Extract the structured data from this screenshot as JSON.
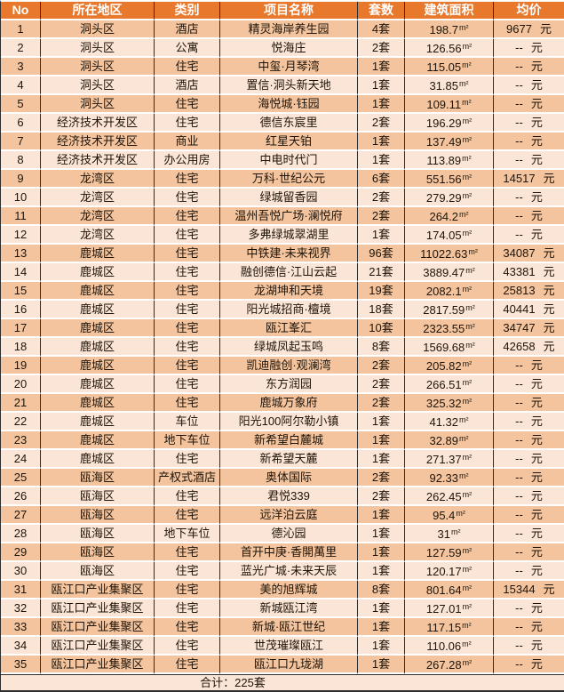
{
  "colors": {
    "header_bg": "#E8782B",
    "header_text": "#FFFFFF",
    "row_odd_bg": "#F3C49E",
    "row_even_bg": "#FBE5D6",
    "grid_dark": "#2E2E2E",
    "text": "#1F1409"
  },
  "table": {
    "columns": [
      {
        "key": "no",
        "label": "No"
      },
      {
        "key": "region",
        "label": "所在地区"
      },
      {
        "key": "category",
        "label": "类别"
      },
      {
        "key": "project",
        "label": "项目名称"
      },
      {
        "key": "units",
        "label": "套数"
      },
      {
        "key": "area",
        "label": "建筑面积"
      },
      {
        "key": "price",
        "label": "均价"
      }
    ],
    "area_unit": "m²",
    "price_unit": "元",
    "footer_label": "合计：225套",
    "rows": [
      {
        "no": "1",
        "region": "洞头区",
        "category": "酒店",
        "project": "精灵海岸养生园",
        "units": "4套",
        "area": "198.7",
        "price": "9677"
      },
      {
        "no": "2",
        "region": "洞头区",
        "category": "公寓",
        "project": "悦海庄",
        "units": "2套",
        "area": "126.56",
        "price": "--"
      },
      {
        "no": "3",
        "region": "洞头区",
        "category": "住宅",
        "project": "中玺·月琴湾",
        "units": "1套",
        "area": "115.05",
        "price": "--"
      },
      {
        "no": "4",
        "region": "洞头区",
        "category": "酒店",
        "project": "置信·洞头新天地",
        "units": "1套",
        "area": "31.85",
        "price": "--"
      },
      {
        "no": "5",
        "region": "洞头区",
        "category": "住宅",
        "project": "海悦城·钰园",
        "units": "1套",
        "area": "109.11",
        "price": "--"
      },
      {
        "no": "6",
        "region": "经济技术开发区",
        "category": "住宅",
        "project": "德信东宸里",
        "units": "2套",
        "area": "196.29",
        "price": "--"
      },
      {
        "no": "7",
        "region": "经济技术开发区",
        "category": "商业",
        "project": "红星天铂",
        "units": "1套",
        "area": "137.49",
        "price": "--"
      },
      {
        "no": "8",
        "region": "经济技术开发区",
        "category": "办公用房",
        "project": "中电时代门",
        "units": "1套",
        "area": "113.89",
        "price": "--"
      },
      {
        "no": "9",
        "region": "龙湾区",
        "category": "住宅",
        "project": "万科·世纪公元",
        "units": "6套",
        "area": "551.56",
        "price": "14517"
      },
      {
        "no": "10",
        "region": "龙湾区",
        "category": "住宅",
        "project": "绿城留香园",
        "units": "2套",
        "area": "279.29",
        "price": "--"
      },
      {
        "no": "11",
        "region": "龙湾区",
        "category": "住宅",
        "project": "温州吾悦广场·澜悦府",
        "units": "2套",
        "area": "264.2",
        "price": "--"
      },
      {
        "no": "12",
        "region": "龙湾区",
        "category": "住宅",
        "project": "多弗绿城翠湖里",
        "units": "1套",
        "area": "174.05",
        "price": "--"
      },
      {
        "no": "13",
        "region": "鹿城区",
        "category": "住宅",
        "project": "中铁建·未来视界",
        "units": "96套",
        "area": "11022.63",
        "price": "34087"
      },
      {
        "no": "14",
        "region": "鹿城区",
        "category": "住宅",
        "project": "融创德信·江山云起",
        "units": "21套",
        "area": "3889.47",
        "price": "43381"
      },
      {
        "no": "15",
        "region": "鹿城区",
        "category": "住宅",
        "project": "龙湖坤和天境",
        "units": "19套",
        "area": "2082.1",
        "price": "25813"
      },
      {
        "no": "16",
        "region": "鹿城区",
        "category": "住宅",
        "project": "阳光城招商·檀境",
        "units": "18套",
        "area": "2817.59",
        "price": "40441"
      },
      {
        "no": "17",
        "region": "鹿城区",
        "category": "住宅",
        "project": "瓯江峯汇",
        "units": "10套",
        "area": "2323.55",
        "price": "34747"
      },
      {
        "no": "18",
        "region": "鹿城区",
        "category": "住宅",
        "project": "绿城凤起玉鸣",
        "units": "8套",
        "area": "1569.68",
        "price": "42658"
      },
      {
        "no": "19",
        "region": "鹿城区",
        "category": "住宅",
        "project": "凯迪融创·观澜湾",
        "units": "2套",
        "area": "205.82",
        "price": "--"
      },
      {
        "no": "20",
        "region": "鹿城区",
        "category": "住宅",
        "project": "东方润园",
        "units": "2套",
        "area": "266.51",
        "price": "--"
      },
      {
        "no": "21",
        "region": "鹿城区",
        "category": "住宅",
        "project": "鹿城万象府",
        "units": "2套",
        "area": "325.32",
        "price": "--"
      },
      {
        "no": "22",
        "region": "鹿城区",
        "category": "车位",
        "project": "阳光100阿尔勒小镇",
        "units": "1套",
        "area": "41.32",
        "price": "--"
      },
      {
        "no": "23",
        "region": "鹿城区",
        "category": "地下车位",
        "project": "新希望白麓城",
        "units": "1套",
        "area": "32.89",
        "price": "--"
      },
      {
        "no": "24",
        "region": "鹿城区",
        "category": "住宅",
        "project": "新希望天麓",
        "units": "1套",
        "area": "271.37",
        "price": "--"
      },
      {
        "no": "25",
        "region": "瓯海区",
        "category": "产权式酒店",
        "project": "奥体国际",
        "units": "2套",
        "area": "92.33",
        "price": "--"
      },
      {
        "no": "26",
        "region": "瓯海区",
        "category": "住宅",
        "project": "君悦339",
        "units": "2套",
        "area": "262.45",
        "price": "--"
      },
      {
        "no": "27",
        "region": "瓯海区",
        "category": "住宅",
        "project": "远洋泊云庭",
        "units": "1套",
        "area": "95.4",
        "price": "--"
      },
      {
        "no": "28",
        "region": "瓯海区",
        "category": "地下车位",
        "project": "德沁园",
        "units": "1套",
        "area": "31",
        "price": "--"
      },
      {
        "no": "29",
        "region": "瓯海区",
        "category": "住宅",
        "project": "首开中庚·香開萬里",
        "units": "1套",
        "area": "127.59",
        "price": "--"
      },
      {
        "no": "30",
        "region": "瓯海区",
        "category": "住宅",
        "project": "蓝光广城·未来天辰",
        "units": "1套",
        "area": "120.17",
        "price": "--"
      },
      {
        "no": "31",
        "region": "瓯江口产业集聚区",
        "category": "住宅",
        "project": "美的旭辉城",
        "units": "8套",
        "area": "801.64",
        "price": "15344"
      },
      {
        "no": "32",
        "region": "瓯江口产业集聚区",
        "category": "住宅",
        "project": "新城瓯江湾",
        "units": "1套",
        "area": "127.01",
        "price": "--"
      },
      {
        "no": "33",
        "region": "瓯江口产业集聚区",
        "category": "住宅",
        "project": "新城·瓯江世纪",
        "units": "1套",
        "area": "117.15",
        "price": "--"
      },
      {
        "no": "34",
        "region": "瓯江口产业集聚区",
        "category": "住宅",
        "project": "世茂璀璨瓯江",
        "units": "1套",
        "area": "110.06",
        "price": "--"
      },
      {
        "no": "35",
        "region": "瓯江口产业集聚区",
        "category": "住宅",
        "project": "瓯江口九珑湖",
        "units": "1套",
        "area": "267.28",
        "price": "--"
      }
    ]
  }
}
